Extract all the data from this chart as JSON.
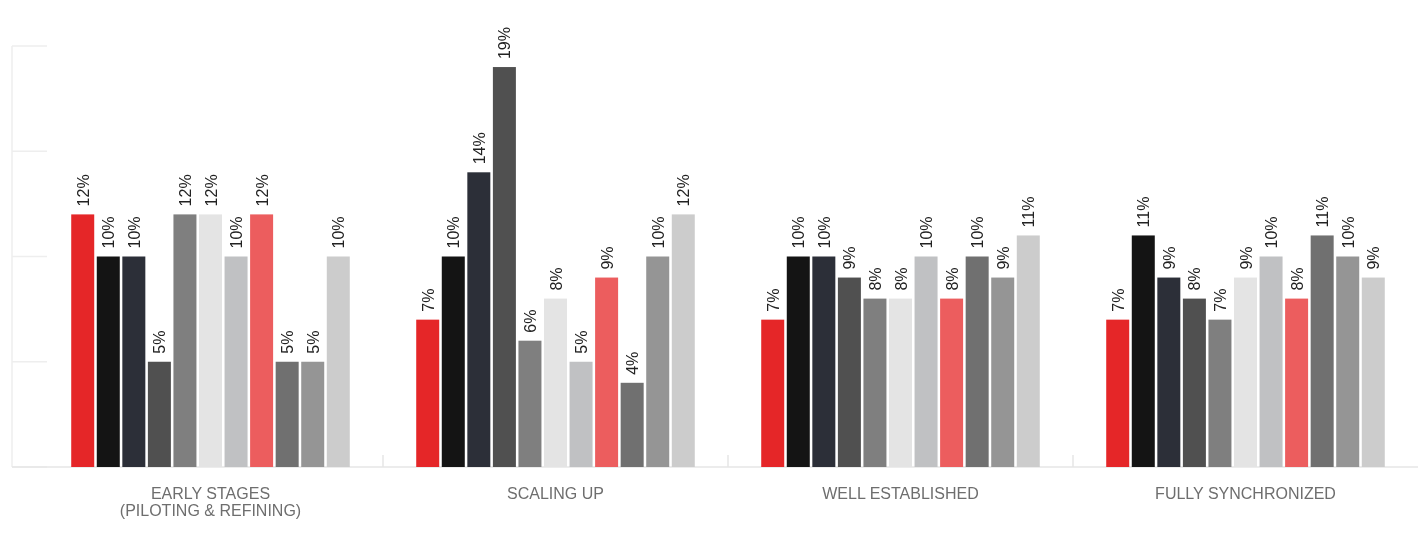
{
  "chart_data": {
    "type": "bar",
    "categories": [
      "EARLY STAGES\n(PILOTING & REFINING)",
      "SCALING UP",
      "WELL ESTABLISHED",
      "FULLY SYNCHRONIZED"
    ],
    "ylim": [
      0,
      20
    ],
    "series": [
      {
        "color": "#e52628",
        "values": [
          12,
          7,
          7,
          7
        ],
        "value_labels": [
          "12%",
          "7%",
          "7%",
          "7%"
        ]
      },
      {
        "color": "#141414",
        "values": [
          10,
          10,
          10,
          11
        ],
        "value_labels": [
          "10%",
          "10%",
          "10%",
          "11%"
        ]
      },
      {
        "color": "#2c2f38",
        "values": [
          10,
          14,
          10,
          9
        ],
        "value_labels": [
          "10%",
          "14%",
          "10%",
          "9%"
        ]
      },
      {
        "color": "#505050",
        "values": [
          5,
          19,
          9,
          8
        ],
        "value_labels": [
          "5%",
          "19%",
          "9%",
          "8%"
        ]
      },
      {
        "color": "#7f7f7f",
        "values": [
          12,
          6,
          8,
          7
        ],
        "value_labels": [
          "12%",
          "6%",
          "8%",
          "7%"
        ]
      },
      {
        "color": "#e4e4e4",
        "values": [
          12,
          8,
          8,
          9
        ],
        "value_labels": [
          "12%",
          "8%",
          "8%",
          "9%"
        ]
      },
      {
        "color": "#c0c1c3",
        "values": [
          10,
          5,
          10,
          10
        ],
        "value_labels": [
          "10%",
          "5%",
          "10%",
          "10%"
        ]
      },
      {
        "color": "#ec5d5e",
        "values": [
          12,
          9,
          8,
          8
        ],
        "value_labels": [
          "12%",
          "9%",
          "8%",
          "8%"
        ]
      },
      {
        "color": "#707070",
        "values": [
          5,
          4,
          10,
          11
        ],
        "value_labels": [
          "5%",
          "4%",
          "10%",
          "11%"
        ]
      },
      {
        "color": "#959595",
        "values": [
          5,
          10,
          9,
          10
        ],
        "value_labels": [
          "5%",
          "10%",
          "9%",
          "10%"
        ]
      },
      {
        "color": "#cccccc",
        "values": [
          10,
          12,
          11,
          9
        ],
        "value_labels": [
          "10%",
          "12%",
          "11%",
          "9%"
        ]
      }
    ]
  }
}
